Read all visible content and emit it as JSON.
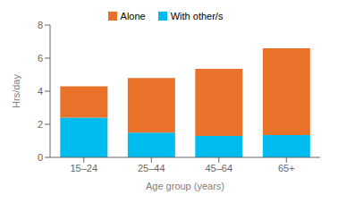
{
  "chart_data": {
    "type": "bar",
    "stacked": true,
    "categories": [
      "15–24",
      "25–44",
      "45–64",
      "65+"
    ],
    "series": [
      {
        "name": "With other/s",
        "color": "#00BBEE",
        "values": [
          2.4,
          1.5,
          1.3,
          1.35
        ]
      },
      {
        "name": "Alone",
        "color": "#E8722A",
        "values": [
          1.9,
          3.3,
          4.05,
          5.25
        ]
      }
    ],
    "xlabel": "Age group (years)",
    "ylabel": "Hrs/day",
    "ylim": [
      0,
      8
    ],
    "yticks": [
      0,
      2,
      4,
      6,
      8
    ],
    "grid": false,
    "legend": "top"
  }
}
